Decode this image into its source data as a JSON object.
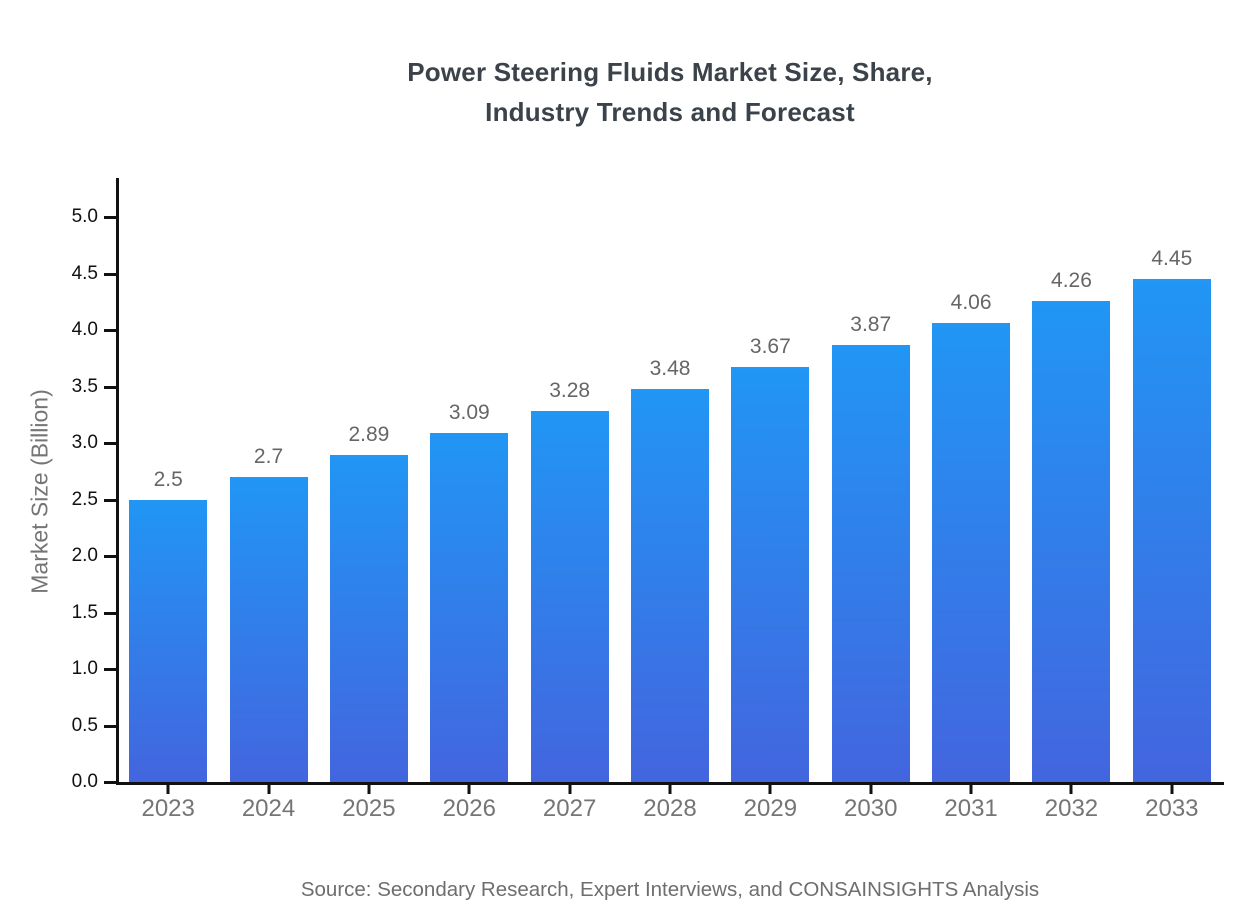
{
  "page": {
    "background": "#ffffff"
  },
  "chart_data": {
    "type": "bar",
    "title": "Power Steering Fluids Market Size, Share, Industry Trends and Forecast",
    "title_lines": [
      "Power Steering Fluids Market Size, Share,",
      "Industry Trends and Forecast"
    ],
    "xlabel": "",
    "ylabel": "Market Size (Billion)",
    "categories": [
      "2023",
      "2024",
      "2025",
      "2026",
      "2027",
      "2028",
      "2029",
      "2030",
      "2031",
      "2032",
      "2033"
    ],
    "values": [
      2.5,
      2.7,
      2.89,
      3.09,
      3.28,
      3.48,
      3.67,
      3.87,
      4.06,
      4.26,
      4.45
    ],
    "value_labels": [
      "2.5",
      "2.7",
      "2.89",
      "3.09",
      "3.28",
      "3.48",
      "3.67",
      "3.87",
      "4.06",
      "4.26",
      "4.45"
    ],
    "ylim": [
      0.0,
      5.0
    ],
    "ytick_step": 0.5,
    "ytick_labels": [
      "0.0",
      "0.5",
      "1.0",
      "1.5",
      "2.0",
      "2.5",
      "3.0",
      "3.5",
      "4.0",
      "4.5",
      "5.0"
    ],
    "grid": false,
    "legend_position": "none",
    "source_note": "Source: Secondary Research, Expert Interviews, and CONSAINSIGHTS Analysis",
    "colors": {
      "bar_gradient_top": "#2196F4",
      "bar_gradient_bottom": "#4365DE",
      "axis": "#111111",
      "title": "#3B4249",
      "ytick_label": "#111111",
      "category_label": "#757575",
      "value_label": "#666666",
      "ylabel": "#757575",
      "source": "#6E6E6E"
    }
  }
}
